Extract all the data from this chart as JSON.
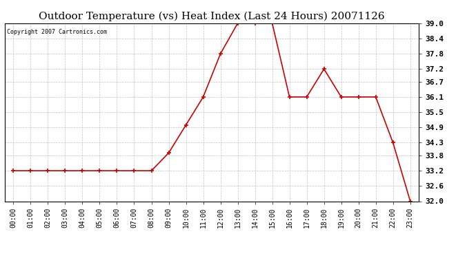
{
  "title": "Outdoor Temperature (vs) Heat Index (Last 24 Hours) 20071126",
  "copyright": "Copyright 2007 Cartronics.com",
  "x_labels": [
    "00:00",
    "01:00",
    "02:00",
    "03:00",
    "04:00",
    "05:00",
    "06:00",
    "07:00",
    "08:00",
    "09:00",
    "10:00",
    "11:00",
    "12:00",
    "13:00",
    "14:00",
    "15:00",
    "16:00",
    "17:00",
    "18:00",
    "19:00",
    "20:00",
    "21:00",
    "22:00",
    "23:00"
  ],
  "y_values": [
    33.2,
    33.2,
    33.2,
    33.2,
    33.2,
    33.2,
    33.2,
    33.2,
    33.2,
    33.9,
    35.0,
    36.1,
    37.8,
    39.0,
    39.0,
    39.0,
    36.1,
    36.1,
    37.2,
    36.1,
    36.1,
    36.1,
    34.3,
    32.0
  ],
  "line_color": "#cc0000",
  "marker_color": "#cc0000",
  "bg_color": "#ffffff",
  "grid_color": "#bbbbbb",
  "ylim_min": 32.0,
  "ylim_max": 39.0,
  "ytick_values": [
    32.0,
    32.6,
    33.2,
    33.8,
    34.3,
    34.9,
    35.5,
    36.1,
    36.7,
    37.2,
    37.8,
    38.4,
    39.0
  ],
  "title_fontsize": 11,
  "copyright_fontsize": 6,
  "tick_fontsize": 7,
  "ytick_fontsize": 8
}
